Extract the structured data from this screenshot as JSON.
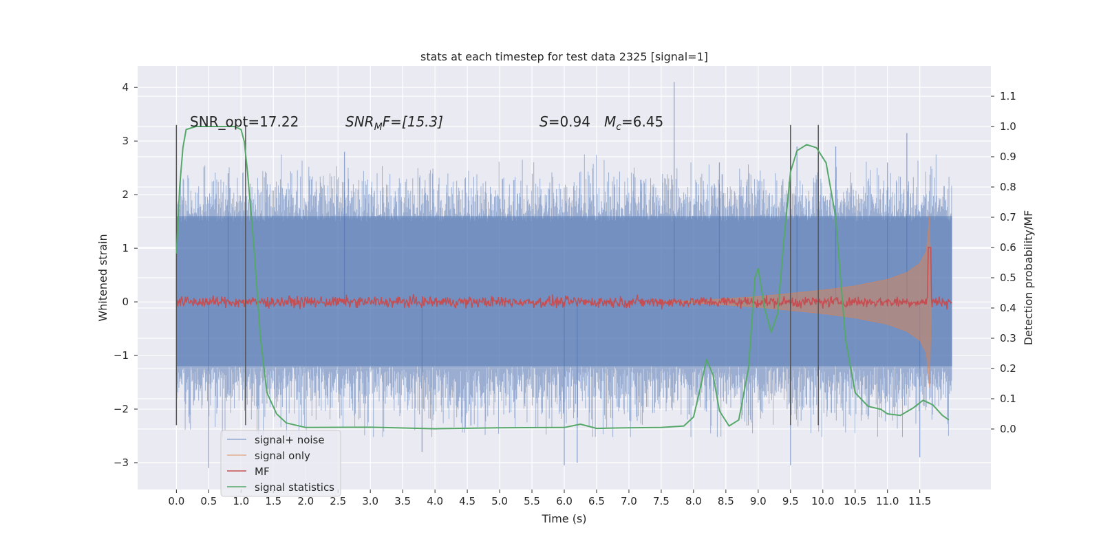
{
  "chart_data": {
    "type": "line",
    "title": "stats at each timestep for test data 2325 [signal=1]",
    "xlabel": "Time (s)",
    "ylabel_left": "Whitened strain",
    "ylabel_right": "Detection probability/MF",
    "xlim": [
      -0.6,
      12.6
    ],
    "ylim_left": [
      -3.5,
      4.4
    ],
    "ylim_right": [
      -0.2,
      1.2
    ],
    "xticks": [
      0.0,
      0.5,
      1.0,
      1.5,
      2.0,
      2.5,
      3.0,
      3.5,
      4.0,
      4.5,
      5.0,
      5.5,
      6.0,
      6.5,
      7.0,
      7.5,
      8.0,
      8.5,
      9.0,
      9.5,
      10.0,
      10.5,
      11.0,
      11.5
    ],
    "xtick_labels": [
      "0.0",
      "0.5",
      "1.0",
      "1.5",
      "2.0",
      "2.5",
      "3.0",
      "3.5",
      "4.0",
      "4.5",
      "5.0",
      "5.5",
      "6.0",
      "6.5",
      "7.0",
      "7.5",
      "8.0",
      "8.5",
      "9.0",
      "9.5",
      "10.0",
      "10.5",
      "11.0",
      "11.5"
    ],
    "yticks_left": [
      -3,
      -2,
      -1,
      0,
      1,
      2,
      3,
      4
    ],
    "ytick_labels_left": [
      "−3",
      "−2",
      "−1",
      "0",
      "1",
      "2",
      "3",
      "4"
    ],
    "yticks_right": [
      0.0,
      0.1,
      0.2,
      0.3,
      0.4,
      0.5,
      0.6,
      0.7,
      0.8,
      0.9,
      1.0,
      1.1
    ],
    "ytick_labels_right": [
      "0.0",
      "0.1",
      "0.2",
      "0.3",
      "0.4",
      "0.5",
      "0.6",
      "0.7",
      "0.8",
      "0.9",
      "1.0",
      "1.1"
    ],
    "grid": true,
    "legend_position": "lower-left",
    "legend": [
      "signal+ noise",
      "signal only",
      "MF",
      "signal statistics"
    ],
    "colors": {
      "axes_bg": "#eaeaf2",
      "grid": "#ffffff",
      "signal_noise": "#4c72b0",
      "signal_only": "#dd8452",
      "mf": "#c44e52",
      "statistics": "#55a868",
      "markers": "#555555"
    },
    "annotations": {
      "snr_opt": "SNR_opt=17.22",
      "snr_mf_prefix": "SNR",
      "snr_mf_sub": "M",
      "snr_mf_suffix": "F=[15.3]",
      "s_label": "S",
      "s_value": "=0.94",
      "mc_label": "M",
      "mc_sub": "c",
      "mc_value": "=6.45"
    },
    "signal_noise": {
      "t_start": 0.0,
      "t_end": 12.0,
      "core_band": [
        -1.2,
        1.6
      ],
      "typical_peaks": [
        2.2,
        -2.1
      ],
      "max": 4.1,
      "min": -3.1,
      "spikes": [
        {
          "t": 0.0,
          "y": 2.45
        },
        {
          "t": 0.5,
          "y": -3.1
        },
        {
          "t": 0.8,
          "y": 2.4
        },
        {
          "t": 2.6,
          "y": 2.8
        },
        {
          "t": 3.8,
          "y": -2.8
        },
        {
          "t": 6.0,
          "y": -3.05
        },
        {
          "t": 6.2,
          "y": -3.0
        },
        {
          "t": 7.7,
          "y": 4.1
        },
        {
          "t": 8.4,
          "y": 2.6
        },
        {
          "t": 9.5,
          "y": -3.05
        },
        {
          "t": 9.6,
          "y": 2.9
        },
        {
          "t": 10.2,
          "y": 2.9
        },
        {
          "t": 11.0,
          "y": 2.6
        },
        {
          "t": 11.3,
          "y": 3.15
        },
        {
          "t": 11.5,
          "y": -2.9
        }
      ]
    },
    "signal_only_envelope": [
      {
        "t": 7.5,
        "a": 0.0
      },
      {
        "t": 8.0,
        "a": 0.02
      },
      {
        "t": 8.5,
        "a": 0.06
      },
      {
        "t": 9.0,
        "a": 0.1
      },
      {
        "t": 9.5,
        "a": 0.16
      },
      {
        "t": 10.0,
        "a": 0.22
      },
      {
        "t": 10.5,
        "a": 0.3
      },
      {
        "t": 11.0,
        "a": 0.42
      },
      {
        "t": 11.3,
        "a": 0.55
      },
      {
        "t": 11.5,
        "a": 0.72
      },
      {
        "t": 11.6,
        "a": 0.95
      },
      {
        "t": 11.65,
        "a": 1.6
      },
      {
        "t": 11.68,
        "a": 0.0
      }
    ],
    "mf": {
      "t_start": 0.0,
      "t_end": 12.0,
      "baseline": 0.42,
      "amplitude": 0.01,
      "peak": {
        "t": 11.65,
        "y": 0.6
      }
    },
    "signal_statistics": [
      {
        "t": 0.0,
        "y": 0.58
      },
      {
        "t": 0.05,
        "y": 0.8
      },
      {
        "t": 0.1,
        "y": 0.93
      },
      {
        "t": 0.15,
        "y": 0.99
      },
      {
        "t": 0.3,
        "y": 1.0
      },
      {
        "t": 0.6,
        "y": 1.0
      },
      {
        "t": 0.9,
        "y": 1.0
      },
      {
        "t": 1.0,
        "y": 0.99
      },
      {
        "t": 1.05,
        "y": 0.95
      },
      {
        "t": 1.1,
        "y": 0.85
      },
      {
        "t": 1.2,
        "y": 0.6
      },
      {
        "t": 1.3,
        "y": 0.3
      },
      {
        "t": 1.4,
        "y": 0.12
      },
      {
        "t": 1.55,
        "y": 0.05
      },
      {
        "t": 1.7,
        "y": 0.02
      },
      {
        "t": 2.0,
        "y": 0.005
      },
      {
        "t": 3.0,
        "y": 0.006
      },
      {
        "t": 4.0,
        "y": 0.001
      },
      {
        "t": 5.0,
        "y": 0.004
      },
      {
        "t": 6.0,
        "y": 0.005
      },
      {
        "t": 6.25,
        "y": 0.016
      },
      {
        "t": 6.5,
        "y": 0.002
      },
      {
        "t": 7.0,
        "y": 0.004
      },
      {
        "t": 7.5,
        "y": 0.005
      },
      {
        "t": 7.85,
        "y": 0.01
      },
      {
        "t": 8.0,
        "y": 0.04
      },
      {
        "t": 8.12,
        "y": 0.15
      },
      {
        "t": 8.2,
        "y": 0.23
      },
      {
        "t": 8.3,
        "y": 0.18
      },
      {
        "t": 8.4,
        "y": 0.06
      },
      {
        "t": 8.55,
        "y": 0.01
      },
      {
        "t": 8.7,
        "y": 0.03
      },
      {
        "t": 8.85,
        "y": 0.2
      },
      {
        "t": 8.95,
        "y": 0.5
      },
      {
        "t": 9.0,
        "y": 0.53
      },
      {
        "t": 9.1,
        "y": 0.4
      },
      {
        "t": 9.2,
        "y": 0.32
      },
      {
        "t": 9.3,
        "y": 0.38
      },
      {
        "t": 9.4,
        "y": 0.63
      },
      {
        "t": 9.5,
        "y": 0.85
      },
      {
        "t": 9.6,
        "y": 0.92
      },
      {
        "t": 9.75,
        "y": 0.94
      },
      {
        "t": 9.9,
        "y": 0.93
      },
      {
        "t": 10.05,
        "y": 0.88
      },
      {
        "t": 10.2,
        "y": 0.7
      },
      {
        "t": 10.35,
        "y": 0.3
      },
      {
        "t": 10.5,
        "y": 0.12
      },
      {
        "t": 10.7,
        "y": 0.075
      },
      {
        "t": 10.9,
        "y": 0.065
      },
      {
        "t": 11.0,
        "y": 0.05
      },
      {
        "t": 11.2,
        "y": 0.045
      },
      {
        "t": 11.4,
        "y": 0.07
      },
      {
        "t": 11.55,
        "y": 0.095
      },
      {
        "t": 11.7,
        "y": 0.08
      },
      {
        "t": 11.85,
        "y": 0.045
      },
      {
        "t": 11.95,
        "y": 0.03
      }
    ],
    "vertical_markers": [
      {
        "t": 0.0,
        "y0": -2.3,
        "y1": 3.3
      },
      {
        "t": 1.07,
        "y0": -2.3,
        "y1": 3.3
      },
      {
        "t": 9.5,
        "y0": -2.3,
        "y1": 3.3
      },
      {
        "t": 9.93,
        "y0": -2.3,
        "y1": 3.3
      }
    ]
  }
}
